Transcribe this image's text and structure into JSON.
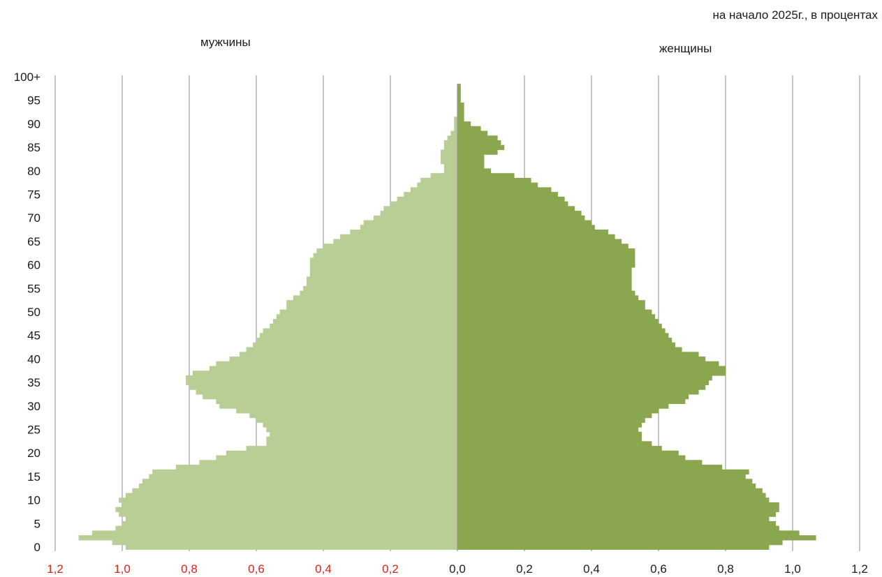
{
  "chart_data": {
    "type": "bar",
    "orientation": "horizontal",
    "subtitle": "на начало 2025г., в процентах",
    "series": [
      {
        "name": "мужчины",
        "side": "left",
        "color": "#b9ce95",
        "values": [
          0.99,
          1.03,
          1.13,
          1.09,
          1.02,
          1.0,
          0.99,
          1.01,
          1.02,
          1.0,
          1.01,
          0.99,
          0.97,
          0.95,
          0.94,
          0.92,
          0.91,
          0.84,
          0.77,
          0.72,
          0.69,
          0.63,
          0.57,
          0.57,
          0.56,
          0.57,
          0.58,
          0.6,
          0.62,
          0.66,
          0.71,
          0.72,
          0.76,
          0.78,
          0.8,
          0.81,
          0.81,
          0.79,
          0.74,
          0.72,
          0.68,
          0.65,
          0.63,
          0.61,
          0.6,
          0.59,
          0.58,
          0.56,
          0.55,
          0.54,
          0.53,
          0.51,
          0.51,
          0.49,
          0.47,
          0.46,
          0.45,
          0.45,
          0.44,
          0.44,
          0.44,
          0.44,
          0.43,
          0.42,
          0.4,
          0.37,
          0.35,
          0.32,
          0.29,
          0.28,
          0.25,
          0.23,
          0.22,
          0.2,
          0.18,
          0.16,
          0.14,
          0.12,
          0.11,
          0.08,
          0.04,
          0.04,
          0.05,
          0.05,
          0.05,
          0.04,
          0.04,
          0.03,
          0.02,
          0.01,
          0.01,
          0.01,
          0.0,
          0.0,
          0.0,
          0.0,
          0.0,
          0.0,
          0.0,
          0.0,
          0.0
        ],
        "top_age_label": "100+"
      },
      {
        "name": "женщины",
        "side": "right",
        "color": "#8aa64f",
        "values": [
          0.93,
          0.97,
          1.07,
          1.02,
          0.96,
          0.95,
          0.93,
          0.95,
          0.96,
          0.96,
          0.93,
          0.92,
          0.91,
          0.89,
          0.88,
          0.86,
          0.87,
          0.79,
          0.73,
          0.68,
          0.66,
          0.61,
          0.58,
          0.55,
          0.55,
          0.54,
          0.55,
          0.56,
          0.58,
          0.6,
          0.63,
          0.68,
          0.69,
          0.72,
          0.74,
          0.75,
          0.76,
          0.8,
          0.8,
          0.78,
          0.74,
          0.72,
          0.67,
          0.65,
          0.64,
          0.63,
          0.62,
          0.61,
          0.6,
          0.59,
          0.58,
          0.56,
          0.56,
          0.54,
          0.53,
          0.52,
          0.52,
          0.52,
          0.52,
          0.52,
          0.53,
          0.53,
          0.53,
          0.53,
          0.51,
          0.49,
          0.47,
          0.45,
          0.41,
          0.4,
          0.38,
          0.37,
          0.35,
          0.33,
          0.32,
          0.3,
          0.28,
          0.24,
          0.22,
          0.17,
          0.1,
          0.08,
          0.08,
          0.08,
          0.12,
          0.14,
          0.13,
          0.12,
          0.09,
          0.07,
          0.04,
          0.02,
          0.02,
          0.02,
          0.02,
          0.01,
          0.01,
          0.01,
          0.01,
          0.0,
          0.0
        ]
      }
    ],
    "y_axis": {
      "labels": [
        "0",
        "5",
        "10",
        "15",
        "20",
        "25",
        "30",
        "35",
        "40",
        "45",
        "50",
        "55",
        "60",
        "65",
        "70",
        "75",
        "80",
        "85",
        "90",
        "95",
        "100+"
      ],
      "range": [
        0,
        100
      ]
    },
    "x_axis": {
      "range": [
        -1.2,
        1.2
      ],
      "tick_labels_left": [
        "1,2",
        "1,0",
        "0,8",
        "0,6",
        "0,4",
        "0,2"
      ],
      "tick_labels_right": [
        "0,0",
        "0,2",
        "0,4",
        "0,6",
        "0,8",
        "1,0",
        "1,2"
      ],
      "left_tick_color": "#e0201b",
      "right_tick_color": "#1a1a1a"
    },
    "grid": true,
    "grid_color": "#a6a6a6"
  }
}
